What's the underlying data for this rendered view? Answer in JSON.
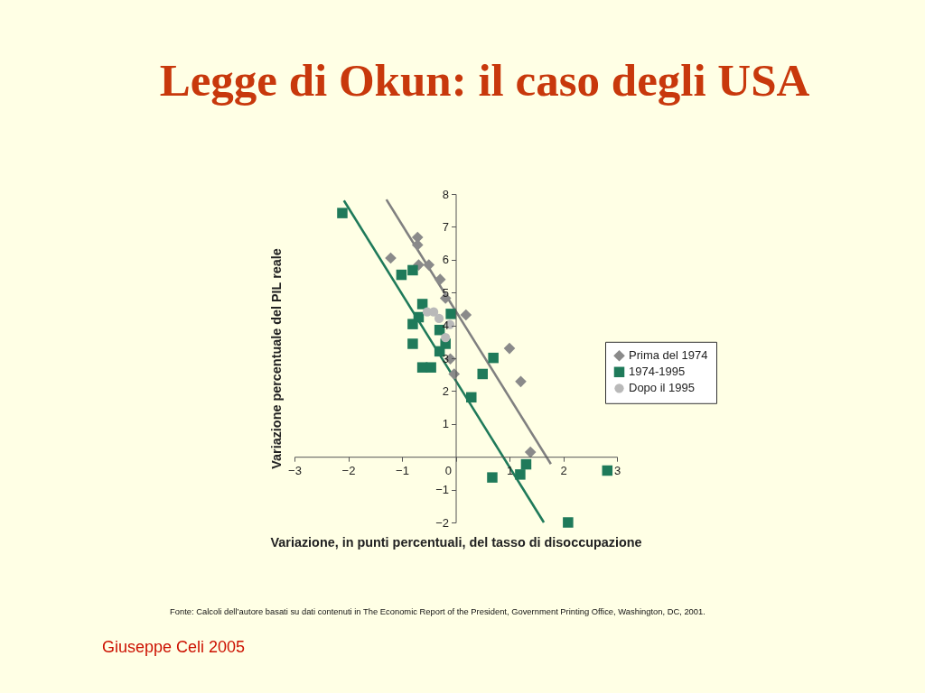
{
  "chart_data": {
    "type": "scatter",
    "title": "Legge di Okun: il caso degli USA",
    "xlabel": "Variazione, in punti percentuali, del tasso di disoccupazione",
    "ylabel": "Variazione percentuale del PIL reale",
    "xlim": [
      -3,
      3
    ],
    "xticks": [
      -3,
      -2,
      -1,
      0,
      1,
      2,
      3
    ],
    "ylim": [
      -2,
      8
    ],
    "yticks": [
      -2,
      -1,
      1,
      2,
      3,
      4,
      5,
      6,
      7,
      8
    ],
    "legend": "right",
    "series": [
      {
        "name": "Prima del 1974",
        "type": "scatter",
        "marker": "diamond",
        "color": "#8a8a8a",
        "x": [
          -1.21,
          -0.71,
          -0.71,
          -0.69,
          -0.5,
          -0.29,
          -0.19,
          0.19,
          -0.1,
          -0.03,
          1.0,
          1.21,
          1.39
        ],
        "values": [
          6.05,
          6.68,
          6.45,
          5.84,
          5.84,
          5.4,
          4.83,
          4.32,
          2.98,
          2.52,
          3.3,
          2.29,
          0.14
        ]
      },
      {
        "name": "1974-1995",
        "type": "scatter",
        "marker": "square",
        "color": "#1f7a5a",
        "x": [
          -2.11,
          -1.01,
          -0.8,
          -0.62,
          -0.69,
          -0.8,
          -0.09,
          -0.3,
          -0.8,
          -0.19,
          -0.3,
          -0.62,
          -0.46,
          0.29,
          0.5,
          0.7,
          0.68,
          1.2,
          1.31,
          2.82,
          2.09
        ],
        "values": [
          7.42,
          5.54,
          5.68,
          4.65,
          4.25,
          4.04,
          4.35,
          3.86,
          3.44,
          3.44,
          3.21,
          2.72,
          2.72,
          1.81,
          2.52,
          3.01,
          -0.63,
          -0.54,
          -0.23,
          -0.42,
          -2.0
        ]
      },
      {
        "name": "Dopo il 1995",
        "type": "scatter",
        "marker": "circle",
        "color": "#b9b9b9",
        "x": [
          -0.53,
          -0.41,
          -0.31,
          -0.11,
          -0.19
        ],
        "values": [
          4.41,
          4.41,
          4.21,
          4.03,
          3.63
        ]
      },
      {
        "type": "line",
        "marker": "none",
        "line_style": "solid",
        "color": "#808080",
        "x": [
          -1.29,
          1.77
        ],
        "values": [
          7.83,
          -0.22
        ]
      },
      {
        "type": "line",
        "marker": "none",
        "line_style": "solid",
        "color": "#1f7a5a",
        "x": [
          -2.08,
          1.64
        ],
        "values": [
          7.8,
          -2.0
        ]
      }
    ],
    "annotations": [
      "Fonte: Calcoli dell’autore basati su dati contenuti in The Economic Report of the President, Government Printing Office, Washington, DC, 2001.",
      "Giuseppe Celi 2005"
    ]
  }
}
